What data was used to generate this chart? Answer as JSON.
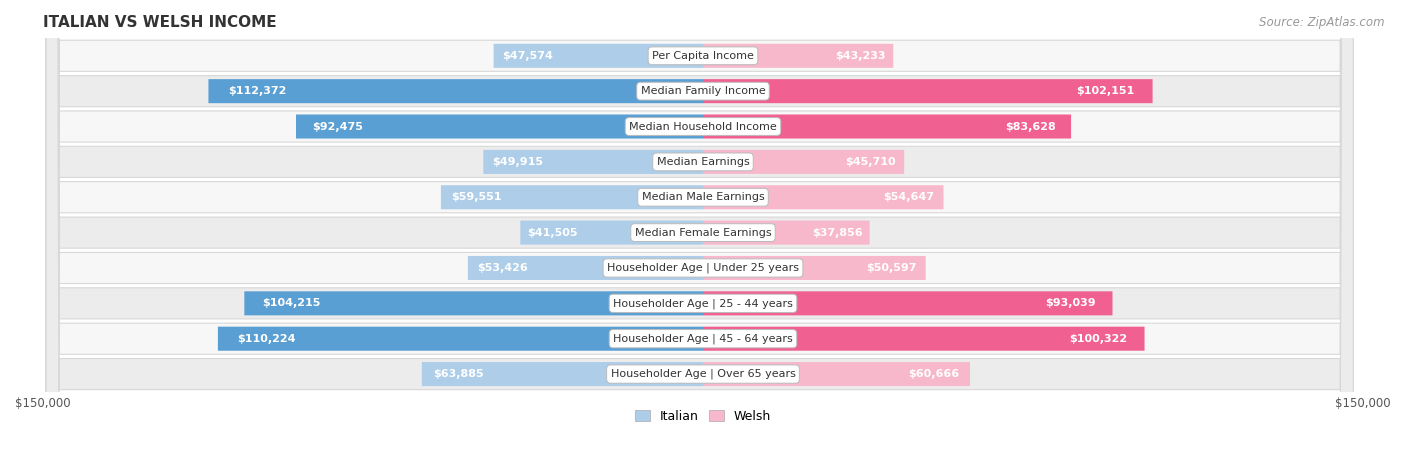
{
  "title": "ITALIAN VS WELSH INCOME",
  "source": "Source: ZipAtlas.com",
  "categories": [
    "Per Capita Income",
    "Median Family Income",
    "Median Household Income",
    "Median Earnings",
    "Median Male Earnings",
    "Median Female Earnings",
    "Householder Age | Under 25 years",
    "Householder Age | 25 - 44 years",
    "Householder Age | 45 - 64 years",
    "Householder Age | Over 65 years"
  ],
  "italian_values": [
    47574,
    112372,
    92475,
    49915,
    59551,
    41505,
    53426,
    104215,
    110224,
    63885
  ],
  "welsh_values": [
    43233,
    102151,
    83628,
    45710,
    54647,
    37856,
    50597,
    93039,
    100322,
    60666
  ],
  "italian_labels": [
    "$47,574",
    "$112,372",
    "$92,475",
    "$49,915",
    "$59,551",
    "$41,505",
    "$53,426",
    "$104,215",
    "$110,224",
    "$63,885"
  ],
  "welsh_labels": [
    "$43,233",
    "$102,151",
    "$83,628",
    "$45,710",
    "$54,647",
    "$37,856",
    "$50,597",
    "$93,039",
    "$100,322",
    "$60,666"
  ],
  "max_value": 150000,
  "italian_light_color": "#aecde8",
  "italian_dark_color": "#5a9fd4",
  "welsh_light_color": "#f7b8cb",
  "welsh_dark_color": "#f06090",
  "row_bg_light": "#f7f7f7",
  "row_bg_dark": "#ececec",
  "row_border_color": "#d8d8d8",
  "title_fontsize": 11,
  "source_fontsize": 8.5,
  "bar_label_fontsize": 8,
  "category_fontsize": 8,
  "axis_label_fontsize": 8.5,
  "dark_threshold": 65000,
  "inside_threshold": 30000
}
